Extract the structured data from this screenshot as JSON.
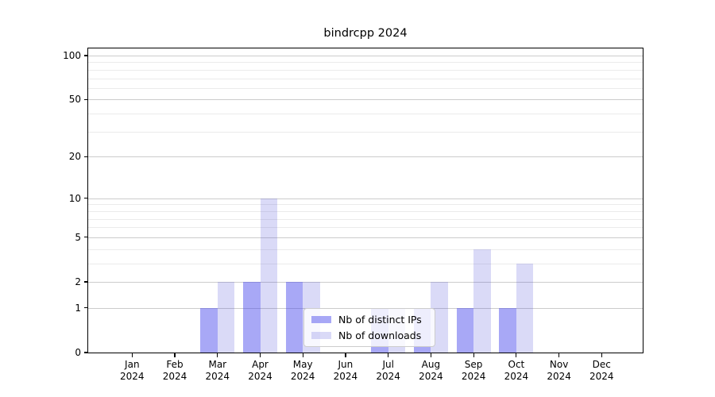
{
  "title": "bindrcpp 2024",
  "chart_data": {
    "type": "bar",
    "title": "bindrcpp 2024",
    "categories": [
      "Jan 2024",
      "Feb 2024",
      "Mar 2024",
      "Apr 2024",
      "May 2024",
      "Jun 2024",
      "Jul 2024",
      "Aug 2024",
      "Sep 2024",
      "Oct 2024",
      "Nov 2024",
      "Dec 2024"
    ],
    "x_tick_line1": [
      "Jan",
      "Feb",
      "Mar",
      "Apr",
      "May",
      "Jun",
      "Jul",
      "Aug",
      "Sep",
      "Oct",
      "Nov",
      "Dec"
    ],
    "x_tick_line2": [
      "2024",
      "2024",
      "2024",
      "2024",
      "2024",
      "2024",
      "2024",
      "2024",
      "2024",
      "2024",
      "2024",
      "2024"
    ],
    "series": [
      {
        "name": "Nb of distinct IPs",
        "values": [
          0,
          0,
          1,
          2,
          2,
          0,
          1,
          1,
          1,
          1,
          0,
          0
        ],
        "color": "rgba(70,70,235,0.47)"
      },
      {
        "name": "Nb of downloads",
        "values": [
          0,
          0,
          2,
          10,
          2,
          0,
          1,
          2,
          4,
          3,
          0,
          0
        ],
        "color": "rgba(70,70,215,0.20)"
      }
    ],
    "y_axis": {
      "scale": "log1p",
      "major_ticks": [
        0,
        1,
        2,
        5,
        10,
        20,
        50,
        100
      ],
      "minor_gridlines": [
        3,
        4,
        6,
        7,
        8,
        9,
        30,
        40,
        60,
        70,
        80,
        90
      ],
      "ylim": [
        0,
        112
      ]
    },
    "xlabel": "",
    "ylabel": "",
    "grid": true,
    "legend_position": "lower center"
  },
  "legend": {
    "items": [
      {
        "label": "Nb of distinct IPs"
      },
      {
        "label": "Nb of downloads"
      }
    ]
  },
  "colors": {
    "bar_distinct_ips": "rgba(70,70,235,0.47)",
    "bar_downloads": "rgba(70,70,215,0.20)",
    "bar_distinct_ips_hex": "#aaaaf5",
    "bar_downloads_hex": "#d9d9f6",
    "grid_major": "#cccccc",
    "grid_minor": "#ebebeb",
    "axis": "#000000",
    "text": "#000000",
    "legend_border": "#cccccc"
  }
}
